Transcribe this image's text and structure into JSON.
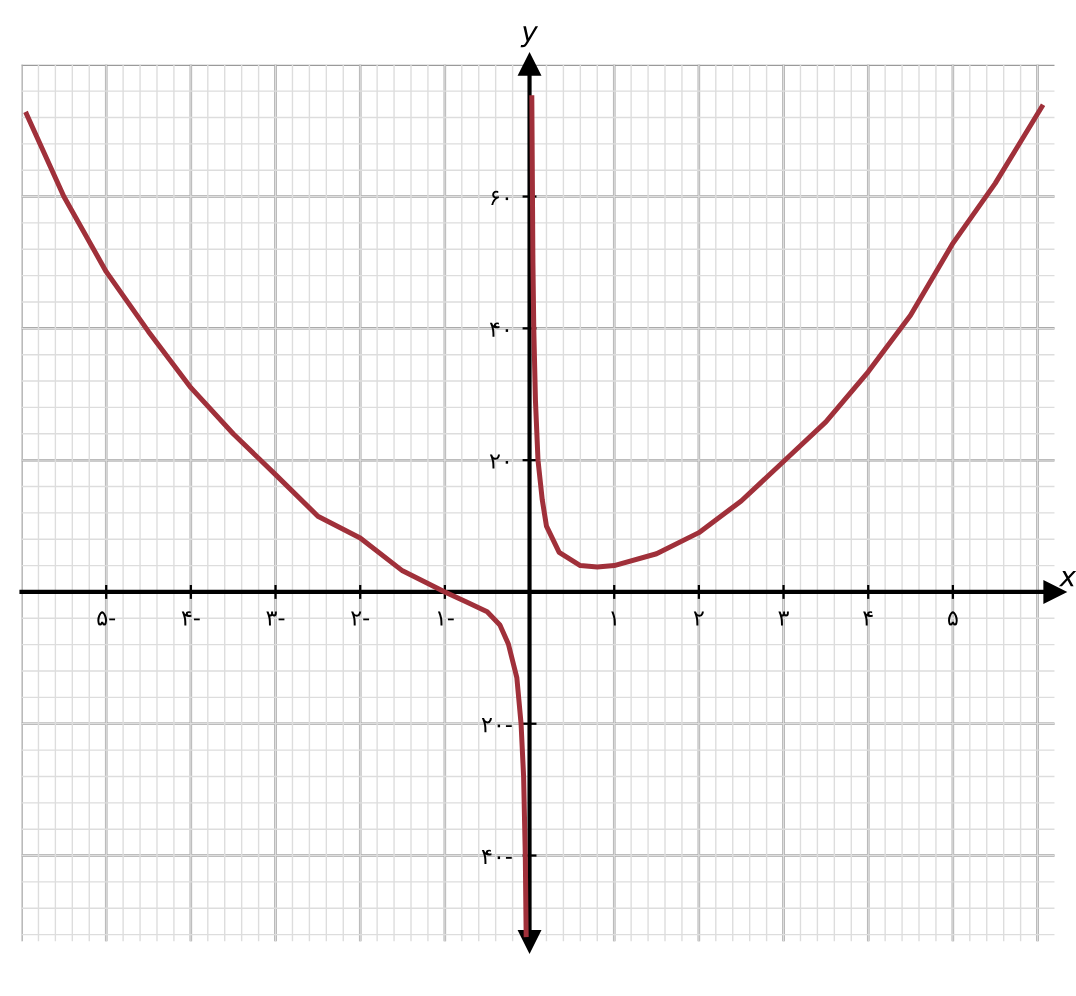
{
  "chart_data": {
    "type": "line",
    "xlabel": "x",
    "ylabel": "y",
    "xlim": [
      -6,
      6.2
    ],
    "ylim": [
      -53,
      80
    ],
    "xticks": [
      {
        "value": -5,
        "label": "۵-"
      },
      {
        "value": -4,
        "label": "۴-"
      },
      {
        "value": -3,
        "label": "۳-"
      },
      {
        "value": -2,
        "label": "۲-"
      },
      {
        "value": -1,
        "label": "۱-"
      },
      {
        "value": 1,
        "label": "۱"
      },
      {
        "value": 2,
        "label": "۲"
      },
      {
        "value": 3,
        "label": "۳"
      },
      {
        "value": 4,
        "label": "۴"
      },
      {
        "value": 5,
        "label": "۵"
      }
    ],
    "yticks": [
      {
        "value": -40,
        "label": "۴۰-"
      },
      {
        "value": -20,
        "label": "۲۰-"
      },
      {
        "value": 20,
        "label": "۲۰"
      },
      {
        "value": 40,
        "label": "۴۰"
      },
      {
        "value": 60,
        "label": "۶۰"
      }
    ],
    "grid": true,
    "marker": "none",
    "line_style": "solid",
    "series": [
      {
        "color": "#a0303a",
        "x": [
          -5.94,
          -5.5,
          -5,
          -4.5,
          -4,
          -3.5,
          -3,
          -2.5,
          -2,
          -1.5,
          -1,
          -0.75,
          -0.5,
          -0.35,
          -0.25,
          -0.15,
          -0.1,
          -0.07,
          -0.05,
          -0.04
        ],
        "values": [
          72.5,
          60,
          48.6,
          39.5,
          31,
          24,
          17.8,
          11.5,
          8.2,
          3.2,
          0,
          -1.5,
          -3,
          -5,
          -7.9,
          -13,
          -20,
          -28,
          -40,
          -52
        ]
      },
      {
        "color": "#a0303a",
        "x": [
          0.027,
          0.04,
          0.05,
          0.07,
          0.1,
          0.15,
          0.2,
          0.35,
          0.6,
          0.8,
          1,
          1.5,
          2,
          2.5,
          3,
          3.5,
          4,
          4.5,
          5,
          5.5,
          6.05
        ],
        "values": [
          75,
          50,
          40,
          29,
          20,
          14,
          10,
          6,
          4,
          3.8,
          4,
          5.8,
          9,
          13.8,
          19.8,
          25.8,
          33.4,
          42,
          52.9,
          62,
          73.6
        ]
      }
    ]
  }
}
